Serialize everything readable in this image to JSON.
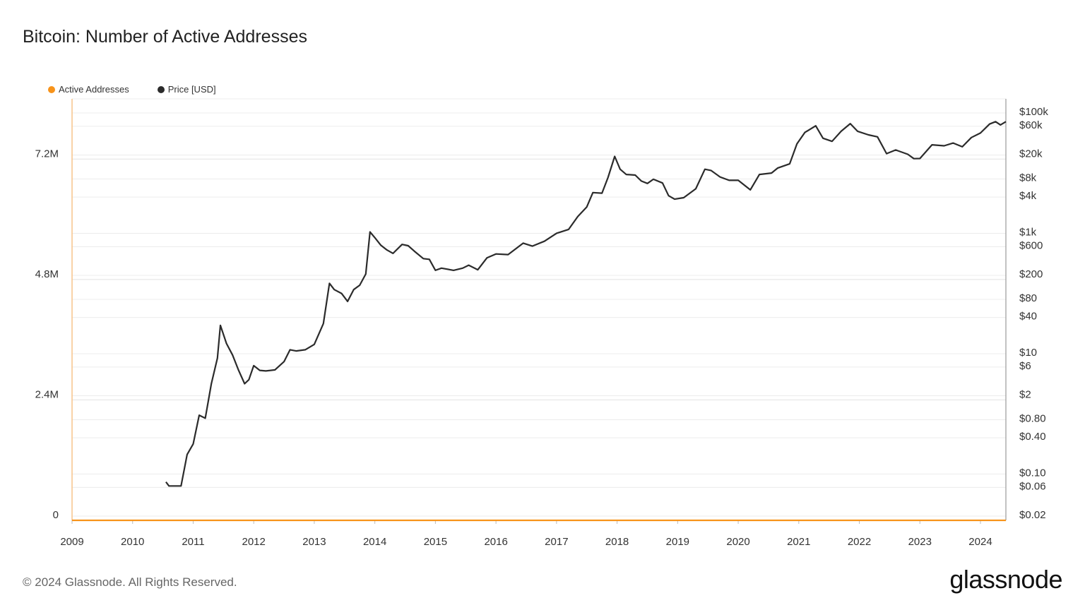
{
  "title": "Bitcoin: Number of Active Addresses",
  "footer": "© 2024 Glassnode. All Rights Reserved.",
  "logo": "glassnode",
  "colors": {
    "active": "#f7931a",
    "price": "#2b2b2b",
    "grid": "#ececec"
  },
  "chart_data": {
    "type": "line",
    "title": "Bitcoin: Number of Active Addresses",
    "legend_placement": "top-left",
    "grid": true,
    "x_range": [
      2009,
      2024.42
    ],
    "x_ticks": [
      "2009",
      "2010",
      "2011",
      "2012",
      "2013",
      "2014",
      "2015",
      "2016",
      "2017",
      "2018",
      "2019",
      "2020",
      "2021",
      "2022",
      "2023",
      "2024"
    ],
    "y_left": {
      "range": [
        0,
        8400000
      ],
      "ticks": [
        0,
        2400000,
        4800000,
        7200000
      ],
      "tick_labels": [
        "0",
        "2.4M",
        "4.8M",
        "7.2M"
      ]
    },
    "y_right": {
      "scale": "log",
      "range": [
        0.02,
        100000
      ],
      "ticks": [
        100000,
        60000,
        20000,
        8000,
        4000,
        1000,
        600,
        200,
        80,
        40,
        10,
        6,
        2,
        0.8,
        0.4,
        0.1,
        0.06,
        0.02
      ],
      "tick_labels": [
        "$100k",
        "$60k",
        "$20k",
        "$8k",
        "$4k",
        "$1k",
        "$600",
        "$200",
        "$80",
        "$40",
        "$10",
        "$6",
        "$2",
        "$0.80",
        "$0.40",
        "$0.10",
        "$0.06",
        "$0.02"
      ]
    },
    "series": [
      {
        "name": "Active Addresses",
        "axis": "left",
        "color": "#f7931a",
        "x": [
          2009,
          2010,
          2010.5,
          2011,
          2011.3,
          2011.45,
          2011.6,
          2012,
          2012.5,
          2013,
          2013.3,
          2013.5,
          2013.9,
          2014.1,
          2014.2,
          2014.5,
          2015,
          2015.5,
          2015.8,
          2016,
          2016.1,
          2016.2,
          2016.4,
          2016.6,
          2016.8,
          2017,
          2017.2,
          2017.3,
          2017.4,
          2017.55,
          2017.65,
          2017.75,
          2017.82,
          2017.88,
          2017.96,
          2018.02,
          2018.08,
          2018.13,
          2018.18,
          2018.23,
          2018.28,
          2018.35,
          2018.45,
          2018.55,
          2018.65,
          2018.8,
          2018.9,
          2019,
          2019.1,
          2019.25,
          2019.35,
          2019.45,
          2019.55,
          2019.65,
          2019.75,
          2019.85,
          2020,
          2020.05,
          2020.15,
          2020.25,
          2020.35,
          2020.45,
          2020.55,
          2020.65,
          2020.75,
          2020.85,
          2020.92,
          2020.97,
          2021.03,
          2021.1,
          2021.2,
          2021.3,
          2021.35,
          2021.4,
          2021.47,
          2021.55,
          2021.65,
          2021.75,
          2021.85,
          2021.93,
          2022,
          2022.1,
          2022.2,
          2022.3,
          2022.4,
          2022.5,
          2022.6,
          2022.75,
          2022.9,
          2023,
          2023.1,
          2023.25,
          2023.35,
          2023.45,
          2023.55,
          2023.65,
          2023.72,
          2023.8,
          2023.87,
          2023.93,
          2024,
          2024.1,
          2024.18,
          2024.25,
          2024.3,
          2024.35,
          2024.42
        ],
        "values": [
          0,
          0,
          0.005,
          0.02,
          0.06,
          0.14,
          0.1,
          0.05,
          0.2,
          0.25,
          0.52,
          0.35,
          0.95,
          0.75,
          1.05,
          0.87,
          1.3,
          1.76,
          1.6,
          2.2,
          2.92,
          1.93,
          2.7,
          2.3,
          3.06,
          3.5,
          3.63,
          3.77,
          4.48,
          3.5,
          4.0,
          3.5,
          4.73,
          4.05,
          6.45,
          5.46,
          6.17,
          3.9,
          5.04,
          3.9,
          2.92,
          3.49,
          3.06,
          3.63,
          3.2,
          3.63,
          3.35,
          2.92,
          3.49,
          3.9,
          3.77,
          4.6,
          4.83,
          3.77,
          3.9,
          3.77,
          3.77,
          3.56,
          4.26,
          3.7,
          5.04,
          4.62,
          5.04,
          5.39,
          5.11,
          4.62,
          5.6,
          5.82,
          6.73,
          5.89,
          6.3,
          6.09,
          6.62,
          5.04,
          4.69,
          4.13,
          4.69,
          4.9,
          5.04,
          5.39,
          4.76,
          4.97,
          4.69,
          5.04,
          4.76,
          4.34,
          4.62,
          4.69,
          4.97,
          4.76,
          5.18,
          5.11,
          4.2,
          5.04,
          5.18,
          4.76,
          6.17,
          4.62,
          5.78,
          5.6,
          4.48,
          5.32,
          4.48,
          4.97,
          3.9,
          3.63,
          3.2
        ]
      },
      {
        "name": "Price [USD]",
        "axis": "right",
        "color": "#2b2b2b",
        "x": [
          2010.55,
          2010.6,
          2010.8,
          2010.9,
          2011,
          2011.1,
          2011.2,
          2011.3,
          2011.4,
          2011.45,
          2011.55,
          2011.65,
          2011.75,
          2011.85,
          2011.92,
          2012,
          2012.1,
          2012.2,
          2012.35,
          2012.5,
          2012.6,
          2012.7,
          2012.85,
          2013,
          2013.15,
          2013.25,
          2013.33,
          2013.45,
          2013.55,
          2013.65,
          2013.75,
          2013.85,
          2013.92,
          2014,
          2014.1,
          2014.2,
          2014.3,
          2014.45,
          2014.55,
          2014.65,
          2014.8,
          2014.9,
          2015,
          2015.1,
          2015.3,
          2015.45,
          2015.55,
          2015.7,
          2015.85,
          2016,
          2016.2,
          2016.45,
          2016.6,
          2016.8,
          2017,
          2017.2,
          2017.35,
          2017.5,
          2017.6,
          2017.75,
          2017.85,
          2017.96,
          2018.05,
          2018.15,
          2018.3,
          2018.4,
          2018.5,
          2018.6,
          2018.75,
          2018.85,
          2018.95,
          2019.1,
          2019.3,
          2019.45,
          2019.55,
          2019.7,
          2019.85,
          2020,
          2020.2,
          2020.35,
          2020.55,
          2020.65,
          2020.85,
          2020.97,
          2021.1,
          2021.28,
          2021.4,
          2021.55,
          2021.7,
          2021.85,
          2021.97,
          2022.15,
          2022.3,
          2022.45,
          2022.6,
          2022.8,
          2022.9,
          2023,
          2023.2,
          2023.4,
          2023.55,
          2023.7,
          2023.85,
          2024,
          2024.15,
          2024.25,
          2024.33,
          2024.42
        ],
        "values": [
          0.07,
          0.06,
          0.06,
          0.2,
          0.3,
          0.9,
          0.8,
          3,
          8,
          28,
          14,
          9,
          5,
          3,
          3.5,
          6,
          5,
          4.9,
          5.1,
          7,
          11,
          10.5,
          11,
          13.5,
          30,
          140,
          110,
          95,
          70,
          110,
          130,
          200,
          1000,
          800,
          600,
          500,
          440,
          620,
          590,
          480,
          360,
          350,
          230,
          250,
          230,
          250,
          280,
          235,
          370,
          430,
          420,
          650,
          580,
          700,
          950,
          1100,
          1800,
          2600,
          4500,
          4400,
          8000,
          18000,
          11000,
          9000,
          8800,
          7000,
          6400,
          7500,
          6500,
          4000,
          3500,
          3700,
          5200,
          11000,
          10500,
          8200,
          7200,
          7200,
          5000,
          9000,
          9500,
          11500,
          13500,
          29000,
          45000,
          58000,
          36000,
          32000,
          47000,
          63000,
          47000,
          41000,
          38000,
          20000,
          23000,
          19500,
          16500,
          16600,
          28000,
          27000,
          30000,
          26000,
          37000,
          44000,
          62000,
          68000,
          60000,
          68000
        ]
      }
    ]
  }
}
